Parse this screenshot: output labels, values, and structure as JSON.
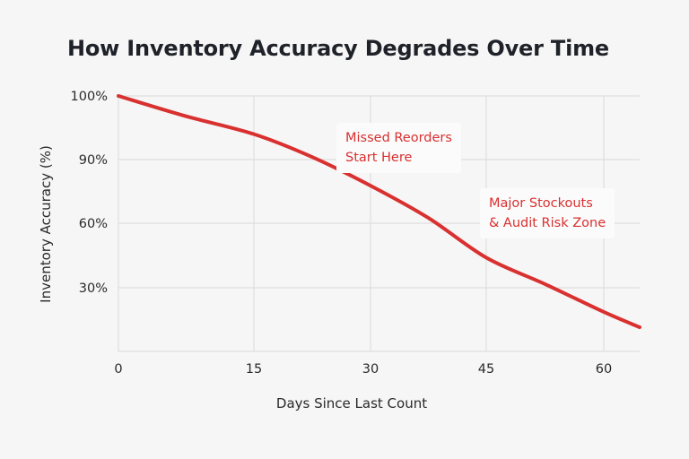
{
  "chart_data": {
    "type": "line",
    "title": "How Inventory Accuracy Degrades Over Time",
    "xlabel": "Days Since Last Count",
    "ylabel": "Inventory Accuracy (%)",
    "x_ticks": [
      0,
      15,
      30,
      45,
      60
    ],
    "y_ticks": [
      {
        "value": 100,
        "label": "100%"
      },
      {
        "value": 90,
        "label": "90%"
      },
      {
        "value": 60,
        "label": "60%"
      },
      {
        "value": 30,
        "label": "30%"
      }
    ],
    "xlim": [
      0,
      64.6
    ],
    "ylim": [
      0,
      100
    ],
    "grid": true,
    "series": [
      {
        "color": "#d93030",
        "x": [
          0,
          7.5,
          15,
          22.5,
          30,
          37.5,
          45,
          52.5,
          60,
          64.6
        ],
        "y": [
          100,
          96.8,
          94,
          90.4,
          77.7,
          62.5,
          44,
          31.7,
          18.6,
          11.4
        ]
      }
    ],
    "annotations": [
      {
        "lines": [
          "Missed Reorders",
          "Start Here"
        ],
        "color": "#d93030"
      },
      {
        "lines": [
          "Major Stockouts",
          "& Audit Risk Zone"
        ],
        "color": "#d93030"
      }
    ]
  }
}
